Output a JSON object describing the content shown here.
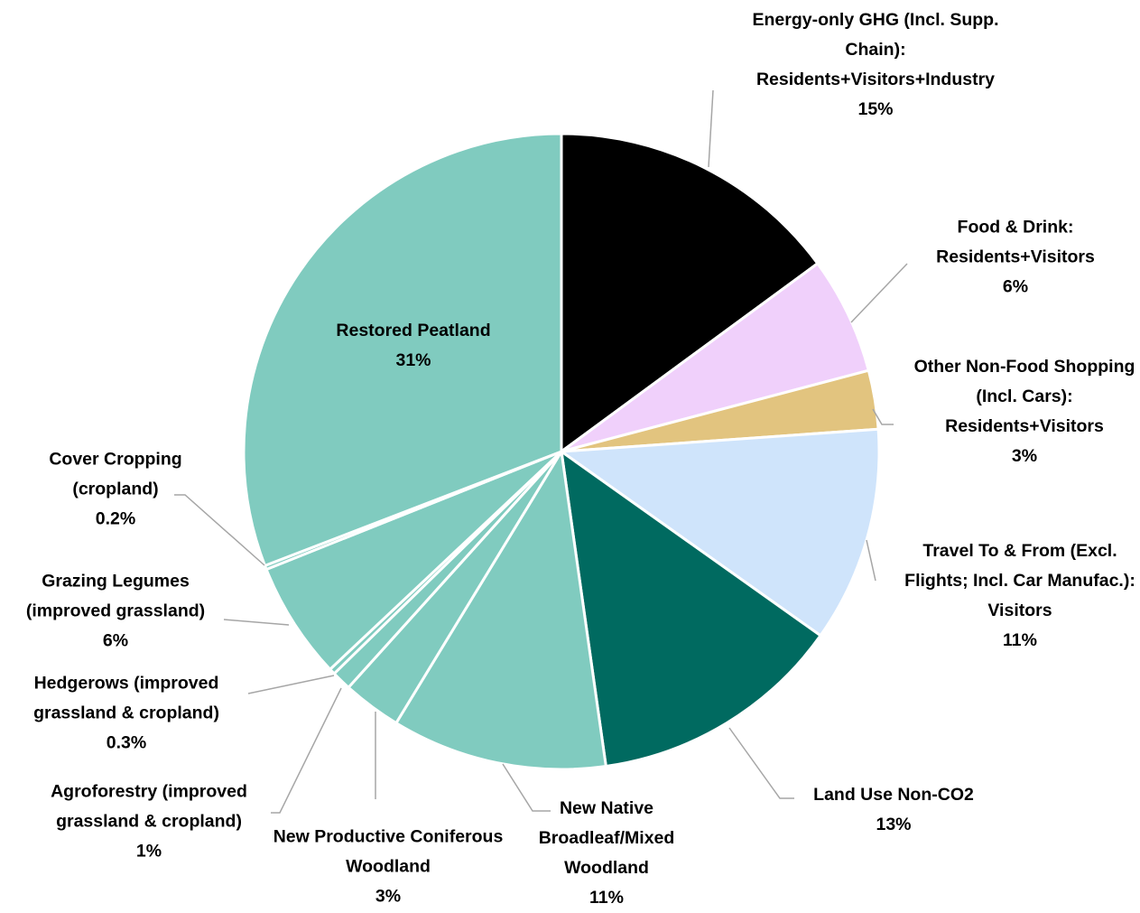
{
  "chart_data": {
    "type": "pie",
    "categories": [
      "Energy-only GHG (Incl. Supp. Chain): Residents+Visitors+Industry",
      "Food & Drink: Residents+Visitors",
      "Other Non-Food Shopping (Incl. Cars): Residents+Visitors",
      "Travel To & From (Excl. Flights; Incl. Car Manufac.): Visitors",
      "Land Use Non-CO2",
      "New Native Broadleaf/Mixed Woodland",
      "New Productive Coniferous Woodland",
      "Agroforestry (improved grassland & cropland)",
      "Hedgerows (improved grassland & cropland)",
      "Grazing Legumes (improved grassland)",
      "Cover Cropping (cropland)",
      "Restored Peatland"
    ],
    "values": [
      15,
      6,
      3,
      11,
      13,
      11,
      3,
      1,
      0.3,
      6,
      0.2,
      31
    ],
    "value_labels": [
      "15%",
      "6%",
      "3%",
      "11%",
      "13%",
      "11%",
      "3%",
      "1%",
      "0.3%",
      "6%",
      "0.2%",
      "31%"
    ],
    "colors": [
      "#000000",
      "#f0d0fb",
      "#e2c47f",
      "#cfe4fb",
      "#006a60",
      "#80cbbf",
      "#80cbbf",
      "#80cbbf",
      "#80cbbf",
      "#80cbbf",
      "#80cbbf",
      "#80cbbf"
    ]
  }
}
